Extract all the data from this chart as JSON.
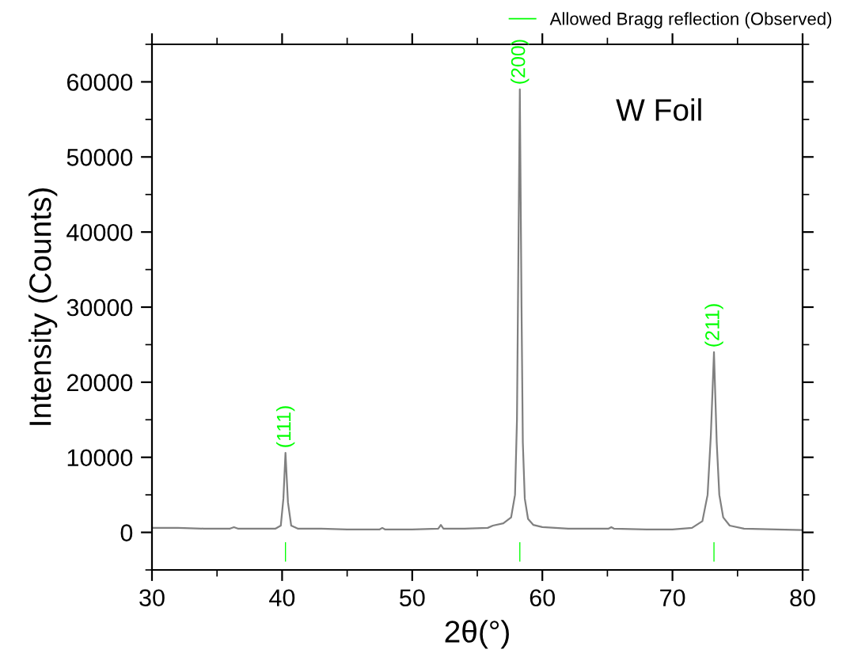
{
  "chart_data": {
    "type": "line",
    "xlabel": "2θ(°)",
    "ylabel": "Intensity (Counts)",
    "xlim": [
      30,
      80
    ],
    "ylim": [
      -5000,
      65000
    ],
    "xticks": [
      30,
      40,
      50,
      60,
      70,
      80
    ],
    "yticks": [
      0,
      10000,
      20000,
      30000,
      40000,
      50000,
      60000
    ],
    "series": [
      {
        "color": "#808080",
        "x": [
          30,
          32,
          34,
          36,
          36.3,
          36.6,
          38,
          39.5,
          39.9,
          40.1,
          40.26,
          40.45,
          40.7,
          41.2,
          43,
          45,
          47.5,
          47.7,
          47.9,
          50,
          52.0,
          52.2,
          52.4,
          54,
          55.8,
          56.2,
          57.0,
          57.6,
          57.9,
          58.05,
          58.15,
          58.27,
          58.4,
          58.5,
          58.65,
          58.9,
          59.3,
          60,
          62,
          65.1,
          65.3,
          65.5,
          68,
          70,
          71.5,
          72.3,
          72.7,
          72.95,
          73.19,
          73.4,
          73.6,
          73.9,
          74.4,
          75.5,
          78,
          80
        ],
        "values": [
          600,
          600,
          500,
          500,
          700,
          500,
          500,
          500,
          900,
          4500,
          10600,
          4000,
          900,
          500,
          500,
          400,
          400,
          600,
          400,
          400,
          500,
          1000,
          500,
          500,
          600,
          900,
          1200,
          2000,
          5000,
          15000,
          35000,
          59000,
          30000,
          12000,
          4500,
          1800,
          1000,
          700,
          500,
          500,
          700,
          500,
          400,
          400,
          600,
          1500,
          5000,
          13000,
          24000,
          12000,
          5000,
          2000,
          900,
          500,
          400,
          300
        ]
      },
      {
        "type": "bar",
        "name": "Allowed Bragg reflection (Observed)",
        "color": "#00ff00",
        "x": [
          40.26,
          58.27,
          73.19
        ],
        "base": [
          -3900,
          -3900,
          -3900
        ],
        "values": [
          2600,
          2600,
          2600
        ]
      }
    ],
    "legend": "top right",
    "annotations": [
      {
        "text": "(111)",
        "x": 40.26,
        "y": 11200
      },
      {
        "text": "(200)",
        "x": 58.27,
        "y": 59600
      },
      {
        "text": "(211)",
        "x": 73.19,
        "y": 24600
      },
      "W Foil"
    ]
  }
}
